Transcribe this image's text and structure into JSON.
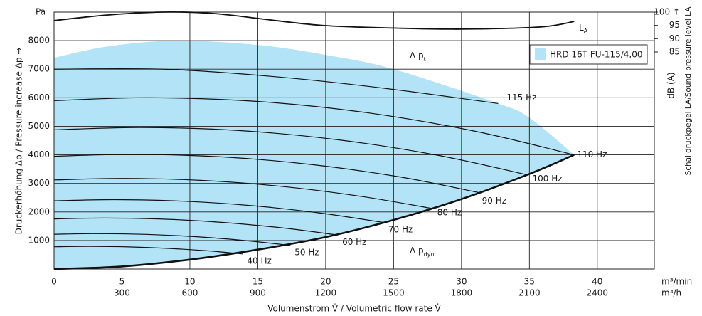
{
  "chart_data": {
    "type": "line",
    "y_unit": "Pa",
    "x_unit": "m³/min",
    "x2_unit": "m³/h",
    "x_label": "Volumenstrom V̇ / Volumetric flow rate V̇",
    "y_label": "Druckerhöhung Δp / Pressure increase Δp →",
    "y2_label": "Schalldruckpegel LA/Sound pressure level LA",
    "y2_unit": "dB (A)",
    "xlim": [
      0,
      44.2
    ],
    "x2lim": [
      0,
      2652
    ],
    "ylim": [
      0,
      9000
    ],
    "y2lim": [
      3.3,
      100
    ],
    "xticks": [
      0,
      5,
      10,
      15,
      20,
      25,
      30,
      35,
      40
    ],
    "x2ticks": [
      300,
      600,
      900,
      1200,
      1500,
      1800,
      2100,
      2400
    ],
    "yticks": [
      1000,
      2000,
      3000,
      4000,
      5000,
      6000,
      7000,
      8000
    ],
    "y2ticks": [
      85,
      90,
      95,
      {
        "value": 100,
        "label": "100 ↑"
      }
    ],
    "grid": true,
    "line_color": "#111111",
    "region": {
      "name": "HRD 16T FU-115/4,00",
      "color": "#b3e3f7",
      "x": [
        0,
        4,
        9,
        15,
        20,
        25,
        32.7,
        35,
        38.3
      ],
      "values": [
        7400,
        7800,
        8000,
        7850,
        7500,
        7000,
        5800,
        5300,
        4000
      ]
    },
    "system_curve": {
      "x": [
        0,
        5,
        10,
        15,
        20,
        25,
        30,
        35,
        38.3
      ],
      "values": [
        0,
        90,
        330,
        680,
        1120,
        1720,
        2450,
        3330,
        4000
      ]
    },
    "sound_curve": {
      "name": "L",
      "name_sub": "A",
      "axis": "y2",
      "x": [
        0,
        3.9,
        8,
        11.7,
        16,
        20,
        25,
        30,
        35.8,
        38.3
      ],
      "values": [
        96.8,
        98.9,
        100,
        99.5,
        97,
        94.9,
        94,
        93.6,
        94.4,
        96.5
      ]
    },
    "series": [
      {
        "name": "40 Hz",
        "x": [
          0,
          2.5,
          5.5,
          8.4,
          11.3,
          13.9
        ],
        "values": [
          780,
          793,
          776,
          724,
          638,
          529
        ]
      },
      {
        "name": "50 Hz",
        "x": [
          0,
          3.2,
          6.8,
          10.5,
          14.1,
          17.4
        ],
        "values": [
          1219,
          1240,
          1213,
          1132,
          997,
          826
        ]
      },
      {
        "name": "60 Hz",
        "x": [
          0,
          3.8,
          8.2,
          12.5,
          16.9,
          20.9
        ],
        "values": [
          1755,
          1785,
          1746,
          1630,
          1436,
          1190
        ]
      },
      {
        "name": "70 Hz",
        "x": [
          0,
          4.5,
          9.5,
          14.6,
          19.7,
          24.4
        ],
        "values": [
          2390,
          2430,
          2377,
          2219,
          1955,
          1620
        ]
      },
      {
        "name": "80 Hz",
        "x": [
          0,
          5.1,
          10.9,
          16.7,
          22.5,
          27.9
        ],
        "values": [
          3121,
          3173,
          3105,
          2898,
          2553,
          2116
        ]
      },
      {
        "name": "90 Hz",
        "x": [
          0,
          5.7,
          12.3,
          18.8,
          25.4,
          31.3
        ],
        "values": [
          3949,
          4016,
          3929,
          3668,
          3231,
          2678
        ]
      },
      {
        "name": "100 Hz",
        "x": [
          0,
          6.4,
          13.6,
          20.9,
          28.2,
          34.8
        ],
        "values": [
          4876,
          4958,
          4851,
          4528,
          3989,
          3306
        ]
      },
      {
        "name": "110 Hz",
        "x": [
          0,
          7,
          15,
          23,
          31,
          38.3
        ],
        "values": [
          5900,
          6000,
          5870,
          5479,
          4827,
          4000
        ]
      },
      {
        "name": "115 Hz",
        "x": [
          0,
          8,
          16,
          24,
          32.7
        ],
        "values": [
          7000,
          7000,
          6750,
          6350,
          5800
        ]
      }
    ],
    "annotations": [
      {
        "text": "Δ p",
        "sub": "t"
      },
      {
        "text": "Δ p",
        "sub": "dyn"
      }
    ]
  }
}
